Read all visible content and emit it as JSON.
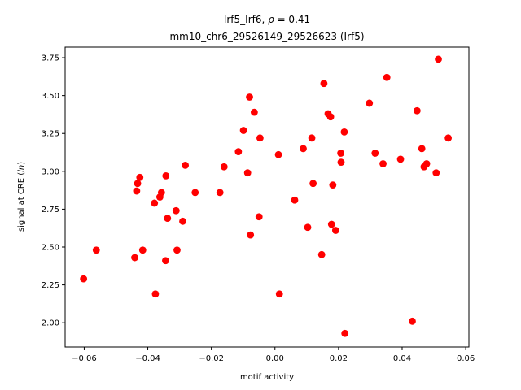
{
  "chart_data": {
    "type": "scatter",
    "title_line1_prefix": "Irf5_Irf6, ",
    "title_line1_rho": "ρ",
    "title_line1_suffix": " = 0.41",
    "title_line2": "mm10_chr6_29526149_29526623 (Irf5)",
    "xlabel": "motif activity",
    "ylabel_prefix": "signal at CRE (",
    "ylabel_italic": "ln",
    "ylabel_suffix": ")",
    "xlim": [
      -0.066,
      0.061
    ],
    "ylim": [
      1.84,
      3.82
    ],
    "xticks": [
      -0.06,
      -0.04,
      -0.02,
      0.0,
      0.02,
      0.04,
      0.06
    ],
    "xtick_labels": [
      "−0.06",
      "−0.04",
      "−0.02",
      "0.00",
      "0.02",
      "0.04",
      "0.06"
    ],
    "yticks": [
      2.0,
      2.25,
      2.5,
      2.75,
      3.0,
      3.25,
      3.5,
      3.75
    ],
    "ytick_labels": [
      "2.00",
      "2.25",
      "2.50",
      "2.75",
      "3.00",
      "3.25",
      "3.50",
      "3.75"
    ],
    "grid": false,
    "marker_color": "#ff0000",
    "points": [
      [
        -0.0602,
        2.29
      ],
      [
        -0.0562,
        2.48
      ],
      [
        -0.0441,
        2.43
      ],
      [
        -0.0435,
        2.87
      ],
      [
        -0.0432,
        2.92
      ],
      [
        -0.0425,
        2.96
      ],
      [
        -0.0416,
        2.48
      ],
      [
        -0.0379,
        2.79
      ],
      [
        -0.0376,
        2.19
      ],
      [
        -0.0362,
        2.83
      ],
      [
        -0.0357,
        2.86
      ],
      [
        -0.0344,
        2.41
      ],
      [
        -0.0343,
        2.97
      ],
      [
        -0.0338,
        2.69
      ],
      [
        -0.0311,
        2.74
      ],
      [
        -0.0308,
        2.48
      ],
      [
        -0.029,
        2.67
      ],
      [
        -0.0282,
        3.04
      ],
      [
        -0.0251,
        2.86
      ],
      [
        -0.0173,
        2.86
      ],
      [
        -0.016,
        3.03
      ],
      [
        -0.0115,
        3.13
      ],
      [
        -0.0099,
        3.27
      ],
      [
        -0.0086,
        2.99
      ],
      [
        -0.008,
        3.49
      ],
      [
        -0.0077,
        2.58
      ],
      [
        -0.0065,
        3.39
      ],
      [
        -0.005,
        2.7
      ],
      [
        -0.0047,
        3.22
      ],
      [
        0.0011,
        3.11
      ],
      [
        0.0014,
        2.19
      ],
      [
        0.0062,
        2.81
      ],
      [
        0.0089,
        3.15
      ],
      [
        0.0103,
        2.63
      ],
      [
        0.0116,
        3.22
      ],
      [
        0.012,
        2.92
      ],
      [
        0.0147,
        2.45
      ],
      [
        0.0154,
        3.58
      ],
      [
        0.0167,
        3.38
      ],
      [
        0.0175,
        3.36
      ],
      [
        0.0178,
        2.65
      ],
      [
        0.0182,
        2.91
      ],
      [
        0.0191,
        2.61
      ],
      [
        0.0207,
        3.12
      ],
      [
        0.0208,
        3.06
      ],
      [
        0.0218,
        3.26
      ],
      [
        0.022,
        1.93
      ],
      [
        0.0297,
        3.45
      ],
      [
        0.0315,
        3.12
      ],
      [
        0.034,
        3.05
      ],
      [
        0.0352,
        3.62
      ],
      [
        0.0395,
        3.08
      ],
      [
        0.0432,
        2.01
      ],
      [
        0.0447,
        3.4
      ],
      [
        0.0462,
        3.15
      ],
      [
        0.0469,
        3.03
      ],
      [
        0.0477,
        3.05
      ],
      [
        0.0507,
        2.99
      ],
      [
        0.0514,
        3.74
      ],
      [
        0.0545,
        3.22
      ]
    ]
  }
}
